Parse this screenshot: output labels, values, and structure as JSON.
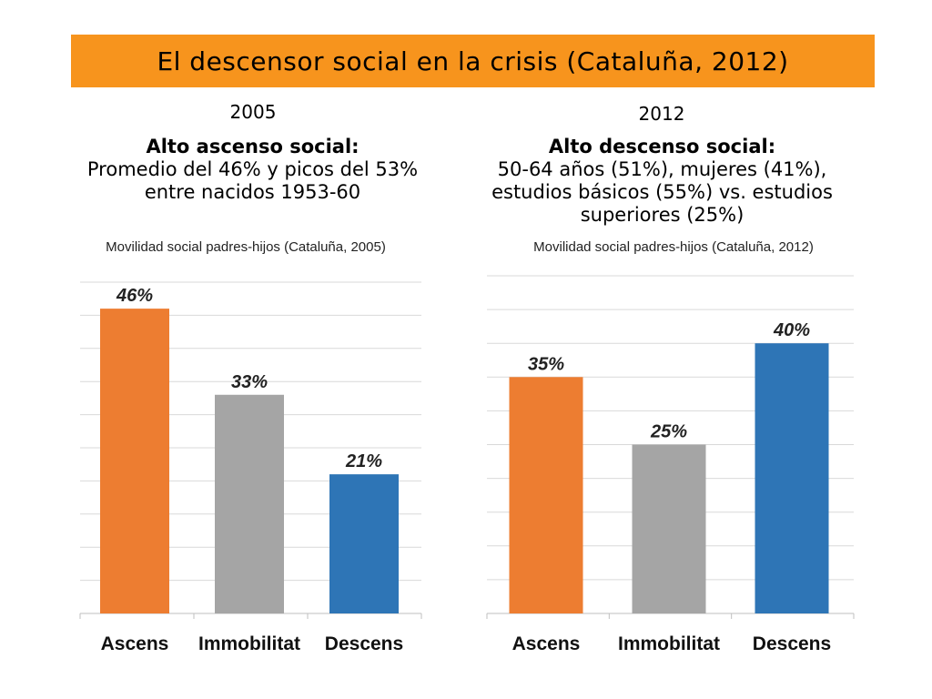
{
  "banner": {
    "title": "El descensor social en la crisis (Cataluña, 2012)",
    "color": "#F7941D"
  },
  "left": {
    "year": "2005",
    "heading": "Alto ascenso social:",
    "body": "Promedio del 46% y picos del 53% entre nacidos 1953-60"
  },
  "right": {
    "year": "2012",
    "heading": "Alto descenso social:",
    "body": "50-64 años (51%), mujeres (41%), estudios básicos (55%) vs. estudios superiores (25%)"
  },
  "chart_data": [
    {
      "type": "bar",
      "title": "Movilidad social padres-hijos (Cataluña, 2005)",
      "categories": [
        "Ascens",
        "Immobilitat",
        "Descens"
      ],
      "values": [
        46,
        33,
        21
      ],
      "labels": [
        "46%",
        "33%",
        "21%"
      ],
      "colors": [
        "#ED7D31",
        "#A5A5A5",
        "#2E75B6"
      ],
      "ylim": [
        0,
        50
      ],
      "grid": true
    },
    {
      "type": "bar",
      "title": "Movilidad social padres-hijos (Cataluña, 2012)",
      "categories": [
        "Ascens",
        "Immobilitat",
        "Descens"
      ],
      "values": [
        35,
        25,
        40
      ],
      "labels": [
        "35%",
        "25%",
        "40%"
      ],
      "colors": [
        "#ED7D31",
        "#A5A5A5",
        "#2E75B6"
      ],
      "ylim": [
        0,
        50
      ],
      "grid": true
    }
  ]
}
